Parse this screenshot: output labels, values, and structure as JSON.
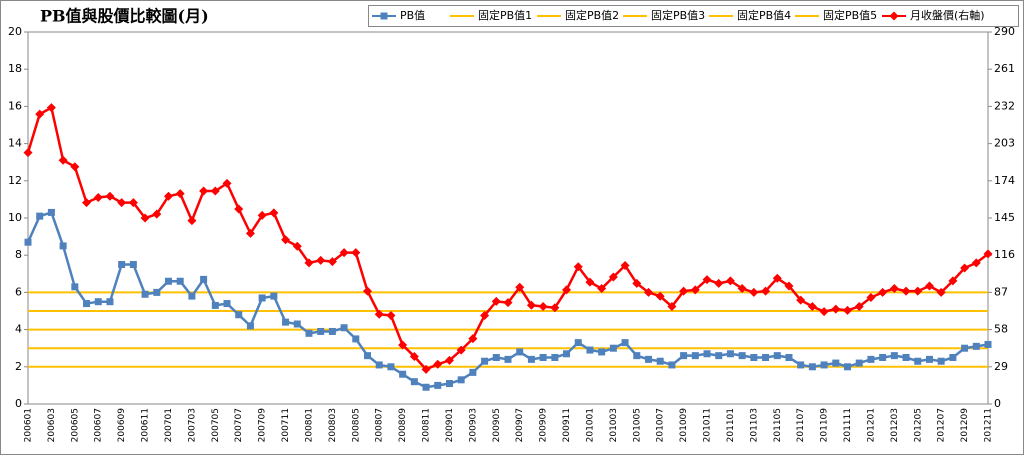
{
  "chart_data": {
    "type": "line",
    "title": "PB值與股價比較圖(月)",
    "categories": [
      "200601",
      null,
      "200603",
      null,
      "200605",
      null,
      "200607",
      null,
      "200609",
      null,
      "200611",
      null,
      "200701",
      null,
      "200703",
      null,
      "200705",
      null,
      "200707",
      null,
      "200709",
      null,
      "200711",
      null,
      "200801",
      null,
      "200803",
      null,
      "200805",
      null,
      "200807",
      null,
      "200809",
      null,
      "200811",
      null,
      "200901",
      null,
      "200903",
      null,
      "200905",
      null,
      "200907",
      null,
      "200909",
      null,
      "200911",
      null,
      "201001",
      null,
      "201003",
      null,
      "201005",
      null,
      "201007",
      null,
      "201009",
      null,
      "201011",
      null,
      "201101",
      null,
      "201103",
      null,
      "201105",
      null,
      "201107",
      null,
      "201109",
      null,
      "201111",
      null,
      "201201",
      null,
      "201203",
      null,
      "201205",
      null,
      "201207",
      null,
      "201209",
      null,
      "201211"
    ],
    "series": [
      {
        "name": "PB值",
        "color": "#4f81bd",
        "marker": "square",
        "values": [
          8.7,
          10.1,
          10.3,
          8.5,
          6.3,
          5.4,
          5.5,
          5.5,
          7.5,
          7.5,
          5.9,
          6.0,
          6.6,
          6.6,
          5.8,
          6.7,
          5.3,
          5.4,
          4.8,
          4.2,
          5.7,
          5.8,
          4.4,
          4.3,
          3.8,
          3.9,
          3.9,
          4.1,
          3.5,
          2.6,
          2.1,
          2.0,
          1.6,
          1.2,
          0.9,
          1.0,
          1.1,
          1.3,
          1.7,
          2.3,
          2.5,
          2.4,
          2.8,
          2.4,
          2.5,
          2.5,
          2.7,
          3.3,
          2.9,
          2.8,
          3.0,
          3.3,
          2.6,
          2.4,
          2.3,
          2.1,
          2.6,
          2.6,
          2.7,
          2.6,
          2.7,
          2.6,
          2.5,
          2.5,
          2.6,
          2.5,
          2.1,
          2.0,
          2.1,
          2.2,
          2.0,
          2.2,
          2.4,
          2.5,
          2.6,
          2.5,
          2.3,
          2.4,
          2.3,
          2.5,
          3.0,
          3.1,
          3.2
        ]
      },
      {
        "name": "固定PB值1",
        "color": "#ffc000",
        "values": [
          2,
          2,
          2,
          2,
          2,
          2,
          2,
          2,
          2,
          2,
          2,
          2,
          2,
          2,
          2,
          2,
          2,
          2,
          2,
          2,
          2,
          2,
          2,
          2,
          2,
          2,
          2,
          2,
          2,
          2,
          2,
          2,
          2,
          2,
          2,
          2,
          2,
          2,
          2,
          2,
          2,
          2,
          2,
          2,
          2,
          2,
          2,
          2,
          2,
          2,
          2,
          2,
          2,
          2,
          2,
          2,
          2,
          2,
          2,
          2,
          2,
          2,
          2,
          2,
          2,
          2,
          2,
          2,
          2,
          2,
          2,
          2,
          2,
          2,
          2,
          2,
          2,
          2,
          2,
          2,
          2,
          2,
          2
        ]
      },
      {
        "name": "固定PB值2",
        "color": "#ffc000",
        "values": [
          3,
          3,
          3,
          3,
          3,
          3,
          3,
          3,
          3,
          3,
          3,
          3,
          3,
          3,
          3,
          3,
          3,
          3,
          3,
          3,
          3,
          3,
          3,
          3,
          3,
          3,
          3,
          3,
          3,
          3,
          3,
          3,
          3,
          3,
          3,
          3,
          3,
          3,
          3,
          3,
          3,
          3,
          3,
          3,
          3,
          3,
          3,
          3,
          3,
          3,
          3,
          3,
          3,
          3,
          3,
          3,
          3,
          3,
          3,
          3,
          3,
          3,
          3,
          3,
          3,
          3,
          3,
          3,
          3,
          3,
          3,
          3,
          3,
          3,
          3,
          3,
          3,
          3,
          3,
          3,
          3,
          3,
          3
        ]
      },
      {
        "name": "固定PB值3",
        "color": "#ffc000",
        "values": [
          4,
          4,
          4,
          4,
          4,
          4,
          4,
          4,
          4,
          4,
          4,
          4,
          4,
          4,
          4,
          4,
          4,
          4,
          4,
          4,
          4,
          4,
          4,
          4,
          4,
          4,
          4,
          4,
          4,
          4,
          4,
          4,
          4,
          4,
          4,
          4,
          4,
          4,
          4,
          4,
          4,
          4,
          4,
          4,
          4,
          4,
          4,
          4,
          4,
          4,
          4,
          4,
          4,
          4,
          4,
          4,
          4,
          4,
          4,
          4,
          4,
          4,
          4,
          4,
          4,
          4,
          4,
          4,
          4,
          4,
          4,
          4,
          4,
          4,
          4,
          4,
          4,
          4,
          4,
          4,
          4,
          4,
          4
        ]
      },
      {
        "name": "固定PB值4",
        "color": "#ffc000",
        "values": [
          5,
          5,
          5,
          5,
          5,
          5,
          5,
          5,
          5,
          5,
          5,
          5,
          5,
          5,
          5,
          5,
          5,
          5,
          5,
          5,
          5,
          5,
          5,
          5,
          5,
          5,
          5,
          5,
          5,
          5,
          5,
          5,
          5,
          5,
          5,
          5,
          5,
          5,
          5,
          5,
          5,
          5,
          5,
          5,
          5,
          5,
          5,
          5,
          5,
          5,
          5,
          5,
          5,
          5,
          5,
          5,
          5,
          5,
          5,
          5,
          5,
          5,
          5,
          5,
          5,
          5,
          5,
          5,
          5,
          5,
          5,
          5,
          5,
          5,
          5,
          5,
          5,
          5,
          5,
          5,
          5,
          5,
          5
        ]
      },
      {
        "name": "固定PB值5",
        "color": "#ffc000",
        "values": [
          6,
          6,
          6,
          6,
          6,
          6,
          6,
          6,
          6,
          6,
          6,
          6,
          6,
          6,
          6,
          6,
          6,
          6,
          6,
          6,
          6,
          6,
          6,
          6,
          6,
          6,
          6,
          6,
          6,
          6,
          6,
          6,
          6,
          6,
          6,
          6,
          6,
          6,
          6,
          6,
          6,
          6,
          6,
          6,
          6,
          6,
          6,
          6,
          6,
          6,
          6,
          6,
          6,
          6,
          6,
          6,
          6,
          6,
          6,
          6,
          6,
          6,
          6,
          6,
          6,
          6,
          6,
          6,
          6,
          6,
          6,
          6,
          6,
          6,
          6,
          6,
          6,
          6,
          6,
          6,
          6,
          6,
          6
        ]
      },
      {
        "name": "月收盤價(右軸)",
        "color": "#ff0000",
        "marker": "diamond",
        "axis": "y2",
        "values": [
          196,
          226,
          231,
          190,
          185,
          157,
          161,
          162,
          157,
          157,
          145,
          148,
          162,
          164,
          143,
          166,
          166,
          172,
          152,
          133,
          147,
          149,
          128,
          123,
          110,
          112,
          111,
          118,
          118,
          88,
          70,
          69,
          46,
          37,
          27,
          31,
          34,
          42,
          51,
          69,
          80,
          79,
          91,
          77,
          76,
          75,
          89,
          107,
          95,
          90,
          99,
          108,
          94,
          87,
          84,
          76,
          88,
          89,
          97,
          94,
          96,
          90,
          87,
          88,
          98,
          92,
          81,
          76,
          72,
          74,
          73,
          76,
          83,
          87,
          90,
          88,
          88,
          92,
          87,
          96,
          106,
          110,
          117
        ]
      }
    ],
    "ylim": [
      0,
      20
    ],
    "yticks": [
      0,
      2,
      4,
      6,
      8,
      10,
      12,
      14,
      16,
      18,
      20
    ],
    "y2lim": [
      0,
      290
    ],
    "y2ticks": [
      0,
      29,
      58,
      87,
      116,
      145,
      174,
      203,
      232,
      261,
      290
    ],
    "legend": "top-right"
  }
}
